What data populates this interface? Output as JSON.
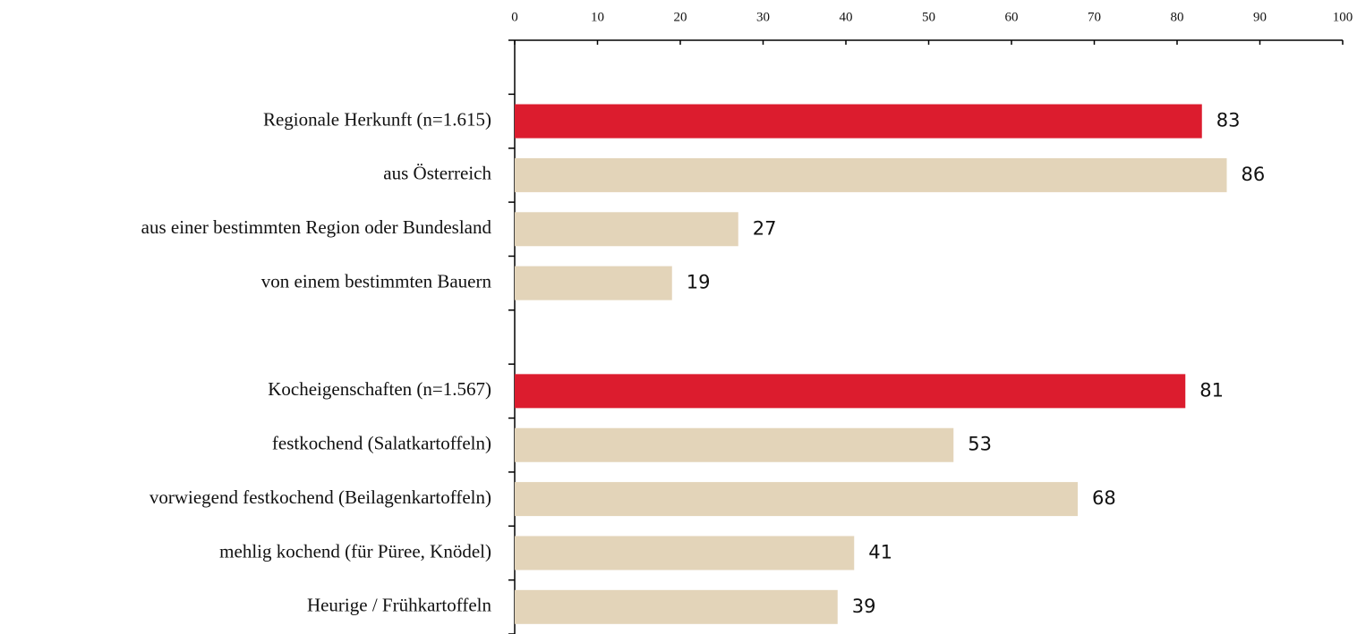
{
  "chart_data": {
    "type": "hbar",
    "categories": [
      null,
      "Regionale Herkunft (n=1.615)",
      "aus Österreich",
      "aus einer bestimmten Region oder  Bundesland",
      "von einem bestimmten Bauern",
      null,
      "Kocheigenschaften  (n=1.567)",
      "festkochend (Salatkartoffeln)",
      "vorwiegend festkochend (Beilagenkartoffeln)",
      "mehlig kochend (für Püree, Knödel)",
      "Heurige / Frühkartoffeln"
    ],
    "values": [
      null,
      83,
      86,
      27,
      19,
      null,
      81,
      53,
      68,
      41,
      39
    ],
    "colors": [
      null,
      "#dc1c2e",
      "#e3d4b9",
      "#e3d4b9",
      "#e3d4b9",
      null,
      "#dc1c2e",
      "#e3d4b9",
      "#e3d4b9",
      "#e3d4b9",
      "#e3d4b9"
    ],
    "xlim": [
      0,
      100
    ],
    "xticks": [
      0,
      10,
      20,
      30,
      40,
      50,
      60,
      70,
      80,
      90,
      100
    ],
    "grid": false
  }
}
